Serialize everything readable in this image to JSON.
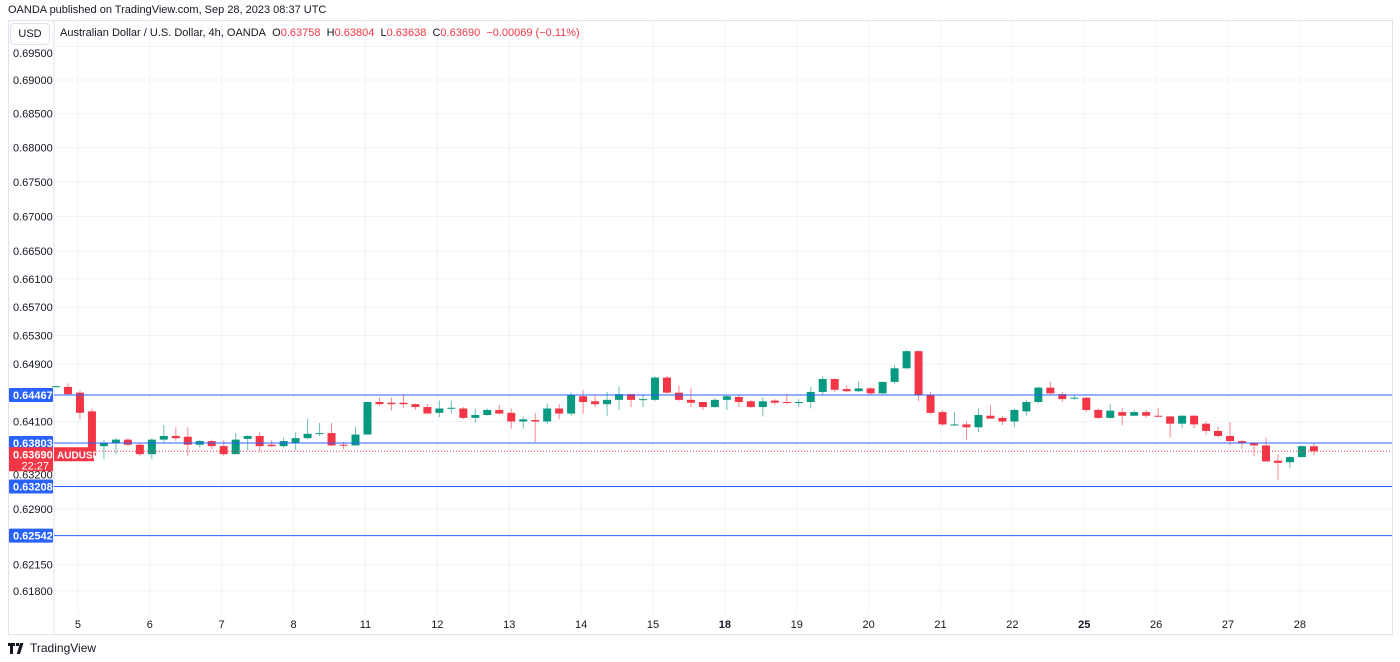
{
  "header": {
    "published": "OANDA published on TradingView.com, Sep 28, 2023 08:37 UTC",
    "currency": "USD",
    "symbol_title": "Australian Dollar / U.S. Dollar, 4h, OANDA",
    "o_label": "O",
    "o_value": "0.63758",
    "h_label": "H",
    "h_value": "0.63804",
    "l_label": "L",
    "l_value": "0.63638",
    "c_label": "C",
    "c_value": "0.63690",
    "change": "−0.00069 (−0.11%)"
  },
  "footer": {
    "brand": "TradingView",
    "logo_icon": "tradingview-logo-icon"
  },
  "colors": {
    "up": "#089981",
    "down": "#f23645",
    "hline": "#2962ff",
    "grid": "#f0f3fa"
  },
  "chart_data": {
    "type": "candlestick",
    "interval": "4h",
    "symbol": "AUDUSD",
    "y_scale": "log",
    "grid": true,
    "ylim": [
      0.6155,
      0.6963
    ],
    "y_ticks": [
      "0.69500",
      "0.69000",
      "0.68500",
      "0.68000",
      "0.67500",
      "0.67000",
      "0.66500",
      "0.66100",
      "0.65700",
      "0.65300",
      "0.64900",
      "0.64100",
      "0.63200",
      "0.62900",
      "0.62150",
      "0.61800"
    ],
    "x_labels": [
      {
        "text": "5",
        "bold": false
      },
      {
        "text": "6",
        "bold": false
      },
      {
        "text": "7",
        "bold": false
      },
      {
        "text": "8",
        "bold": false
      },
      {
        "text": "11",
        "bold": false
      },
      {
        "text": "12",
        "bold": false
      },
      {
        "text": "13",
        "bold": false
      },
      {
        "text": "14",
        "bold": false
      },
      {
        "text": "15",
        "bold": false
      },
      {
        "text": "18",
        "bold": true
      },
      {
        "text": "19",
        "bold": false
      },
      {
        "text": "20",
        "bold": false
      },
      {
        "text": "21",
        "bold": false
      },
      {
        "text": "22",
        "bold": false
      },
      {
        "text": "25",
        "bold": true
      },
      {
        "text": "26",
        "bold": false
      },
      {
        "text": "27",
        "bold": false
      },
      {
        "text": "28",
        "bold": false
      }
    ],
    "horizontal_lines": [
      {
        "price": 0.64467,
        "label": "0.64467"
      },
      {
        "price": 0.63803,
        "label": "0.63803"
      },
      {
        "price": 0.63208,
        "label": "0.63208"
      },
      {
        "price": 0.62542,
        "label": "0.62542"
      }
    ],
    "last_price": {
      "price": 0.6369,
      "label": "0.63690",
      "countdown": "22:27",
      "tag": "AUDUSD"
    },
    "ohlc_columns": [
      "open",
      "high",
      "low",
      "close"
    ],
    "candles": [
      [
        0.6458,
        0.646,
        0.6457,
        0.6459
      ],
      [
        0.6458,
        0.6463,
        0.6446,
        0.6448
      ],
      [
        0.645,
        0.6453,
        0.6413,
        0.6422
      ],
      [
        0.6424,
        0.6428,
        0.6362,
        0.6363
      ],
      [
        0.6376,
        0.6385,
        0.6358,
        0.638
      ],
      [
        0.6381,
        0.6387,
        0.6365,
        0.6385
      ],
      [
        0.6385,
        0.6387,
        0.6376,
        0.6378
      ],
      [
        0.6378,
        0.638,
        0.6362,
        0.6365
      ],
      [
        0.6365,
        0.6387,
        0.6358,
        0.6385
      ],
      [
        0.6385,
        0.6405,
        0.6381,
        0.639
      ],
      [
        0.639,
        0.6402,
        0.6383,
        0.6387
      ],
      [
        0.6389,
        0.6402,
        0.6362,
        0.6378
      ],
      [
        0.6378,
        0.6385,
        0.6374,
        0.6383
      ],
      [
        0.6383,
        0.6385,
        0.6372,
        0.6376
      ],
      [
        0.6376,
        0.6384,
        0.6362,
        0.6365
      ],
      [
        0.6365,
        0.6394,
        0.6365,
        0.6385
      ],
      [
        0.6386,
        0.6391,
        0.637,
        0.639
      ],
      [
        0.639,
        0.6395,
        0.6369,
        0.6376
      ],
      [
        0.6378,
        0.6384,
        0.6375,
        0.6376
      ],
      [
        0.6376,
        0.6388,
        0.6374,
        0.6383
      ],
      [
        0.6381,
        0.6395,
        0.637,
        0.6387
      ],
      [
        0.6387,
        0.6414,
        0.6386,
        0.6393
      ],
      [
        0.6393,
        0.6408,
        0.639,
        0.6394
      ],
      [
        0.6394,
        0.6408,
        0.6376,
        0.6377
      ],
      [
        0.6378,
        0.6382,
        0.6372,
        0.6377
      ],
      [
        0.6377,
        0.6403,
        0.6377,
        0.6392
      ],
      [
        0.6392,
        0.6437,
        0.6392,
        0.6437
      ],
      [
        0.6437,
        0.6443,
        0.6432,
        0.6434
      ],
      [
        0.6436,
        0.6443,
        0.6425,
        0.6434
      ],
      [
        0.6436,
        0.6448,
        0.6429,
        0.6434
      ],
      [
        0.6434,
        0.6435,
        0.6426,
        0.643
      ],
      [
        0.643,
        0.6434,
        0.6421,
        0.6421
      ],
      [
        0.6422,
        0.6439,
        0.6416,
        0.6428
      ],
      [
        0.6428,
        0.6439,
        0.6421,
        0.6429
      ],
      [
        0.6428,
        0.643,
        0.6413,
        0.6415
      ],
      [
        0.6415,
        0.6428,
        0.6408,
        0.6419
      ],
      [
        0.6419,
        0.6428,
        0.6418,
        0.6426
      ],
      [
        0.6426,
        0.6433,
        0.642,
        0.6421
      ],
      [
        0.6422,
        0.6428,
        0.64,
        0.641
      ],
      [
        0.641,
        0.6417,
        0.64,
        0.6413
      ],
      [
        0.6412,
        0.6422,
        0.6382,
        0.641
      ],
      [
        0.641,
        0.6435,
        0.6406,
        0.6428
      ],
      [
        0.6428,
        0.6434,
        0.6413,
        0.6421
      ],
      [
        0.6421,
        0.645,
        0.6418,
        0.6447
      ],
      [
        0.6445,
        0.6454,
        0.6421,
        0.6437
      ],
      [
        0.6438,
        0.6447,
        0.643,
        0.6434
      ],
      [
        0.6434,
        0.6451,
        0.6418,
        0.644
      ],
      [
        0.644,
        0.6459,
        0.6426,
        0.6448
      ],
      [
        0.6448,
        0.6448,
        0.643,
        0.644
      ],
      [
        0.644,
        0.6448,
        0.643,
        0.6441
      ],
      [
        0.644,
        0.6473,
        0.6438,
        0.6471
      ],
      [
        0.6471,
        0.6473,
        0.6449,
        0.645
      ],
      [
        0.645,
        0.646,
        0.6438,
        0.644
      ],
      [
        0.644,
        0.6457,
        0.643,
        0.6436
      ],
      [
        0.6437,
        0.6437,
        0.6426,
        0.643
      ],
      [
        0.643,
        0.6443,
        0.6429,
        0.644
      ],
      [
        0.644,
        0.6446,
        0.6426,
        0.6445
      ],
      [
        0.6444,
        0.6448,
        0.643,
        0.6437
      ],
      [
        0.6438,
        0.644,
        0.6429,
        0.643
      ],
      [
        0.643,
        0.6444,
        0.6417,
        0.6438
      ],
      [
        0.6439,
        0.6441,
        0.6433,
        0.6436
      ],
      [
        0.6437,
        0.6448,
        0.6434,
        0.6436
      ],
      [
        0.6436,
        0.6441,
        0.643,
        0.6437
      ],
      [
        0.6437,
        0.6458,
        0.6428,
        0.6451
      ],
      [
        0.6451,
        0.6473,
        0.6447,
        0.6469
      ],
      [
        0.6469,
        0.647,
        0.6451,
        0.6454
      ],
      [
        0.6455,
        0.646,
        0.6451,
        0.6452
      ],
      [
        0.6452,
        0.6466,
        0.6451,
        0.6456
      ],
      [
        0.6456,
        0.6458,
        0.6446,
        0.6449
      ],
      [
        0.6449,
        0.6465,
        0.6448,
        0.6465
      ],
      [
        0.6465,
        0.6488,
        0.6462,
        0.6484
      ],
      [
        0.6484,
        0.6509,
        0.6483,
        0.6508
      ],
      [
        0.6508,
        0.6509,
        0.6438,
        0.6447
      ],
      [
        0.6447,
        0.6451,
        0.642,
        0.6422
      ],
      [
        0.6423,
        0.6426,
        0.6404,
        0.6406
      ],
      [
        0.6405,
        0.6423,
        0.6404,
        0.6406
      ],
      [
        0.6406,
        0.641,
        0.6385,
        0.6402
      ],
      [
        0.6402,
        0.6428,
        0.6395,
        0.6419
      ],
      [
        0.6418,
        0.6432,
        0.6414,
        0.6414
      ],
      [
        0.6415,
        0.6418,
        0.6405,
        0.641
      ],
      [
        0.641,
        0.6428,
        0.6403,
        0.6426
      ],
      [
        0.6424,
        0.644,
        0.6418,
        0.6437
      ],
      [
        0.6437,
        0.6459,
        0.6435,
        0.6457
      ],
      [
        0.6457,
        0.6465,
        0.6447,
        0.6449
      ],
      [
        0.6448,
        0.6451,
        0.6437,
        0.6441
      ],
      [
        0.6442,
        0.6447,
        0.644,
        0.6443
      ],
      [
        0.6443,
        0.6444,
        0.6423,
        0.6426
      ],
      [
        0.6426,
        0.6428,
        0.6414,
        0.6415
      ],
      [
        0.6415,
        0.6434,
        0.6414,
        0.6425
      ],
      [
        0.6423,
        0.6429,
        0.6405,
        0.6418
      ],
      [
        0.6418,
        0.6426,
        0.6418,
        0.6423
      ],
      [
        0.6423,
        0.6426,
        0.6415,
        0.6418
      ],
      [
        0.6418,
        0.6429,
        0.6416,
        0.6417
      ],
      [
        0.6417,
        0.6418,
        0.6388,
        0.6407
      ],
      [
        0.6407,
        0.6419,
        0.6401,
        0.6418
      ],
      [
        0.6418,
        0.6419,
        0.6401,
        0.6406
      ],
      [
        0.6407,
        0.641,
        0.6392,
        0.6397
      ],
      [
        0.6397,
        0.6403,
        0.6388,
        0.639
      ],
      [
        0.639,
        0.6409,
        0.6377,
        0.6383
      ],
      [
        0.6383,
        0.6385,
        0.6372,
        0.638
      ],
      [
        0.638,
        0.6381,
        0.6362,
        0.6377
      ],
      [
        0.6377,
        0.6388,
        0.6355,
        0.6355
      ],
      [
        0.6356,
        0.6365,
        0.633,
        0.6353
      ],
      [
        0.6354,
        0.6362,
        0.6346,
        0.6361
      ],
      [
        0.6361,
        0.6377,
        0.636,
        0.6376
      ],
      [
        0.63758,
        0.63804,
        0.63638,
        0.6369
      ]
    ]
  }
}
